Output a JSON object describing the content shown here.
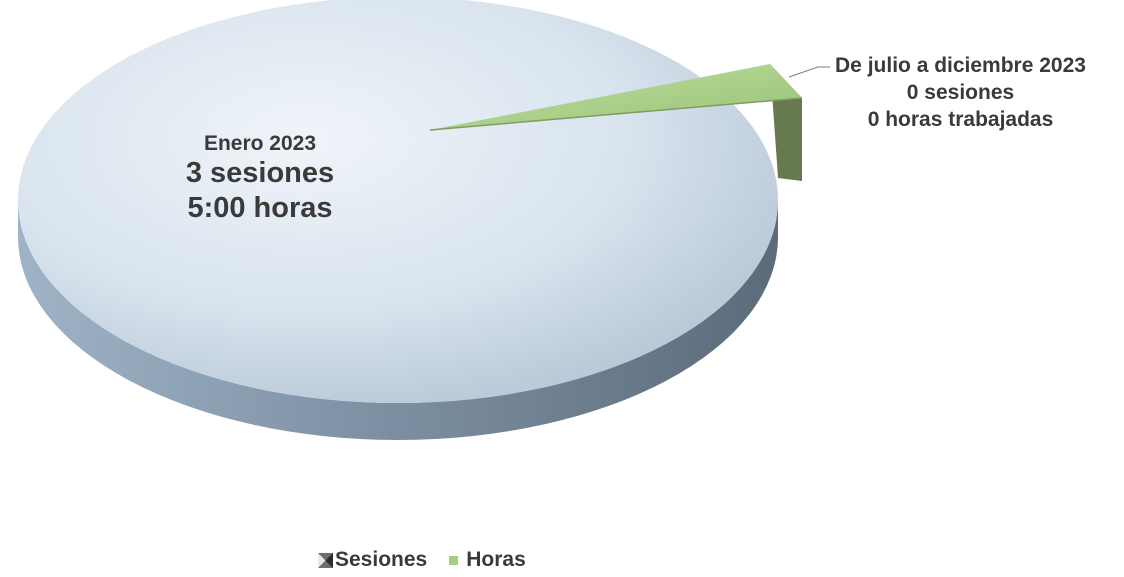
{
  "chart_data": {
    "type": "pie",
    "series": [
      {
        "name": "Sesiones",
        "slices": [
          {
            "value": 3,
            "color": "#cbdcea"
          },
          {
            "value": 0,
            "color": "#a3cd7f"
          }
        ]
      },
      {
        "name": "Horas",
        "slices": [
          {
            "value": 5,
            "color": "#cbdcea"
          },
          {
            "value": 0,
            "color": "#a3cd7f"
          }
        ]
      }
    ],
    "labels": [
      {
        "lines": [
          "Enero 2023",
          "3 sesiones",
          "5:00 horas"
        ]
      },
      {
        "lines": [
          "De julio a diciembre 2023",
          "0 sesiones",
          "0 horas trabajadas"
        ]
      }
    ],
    "legend": {
      "position": "bottom",
      "items": [
        {
          "label": "Sesiones",
          "icon": "bowtie-marker-icon"
        },
        {
          "label": "Horas",
          "color": "#a3cd7f"
        }
      ]
    }
  }
}
